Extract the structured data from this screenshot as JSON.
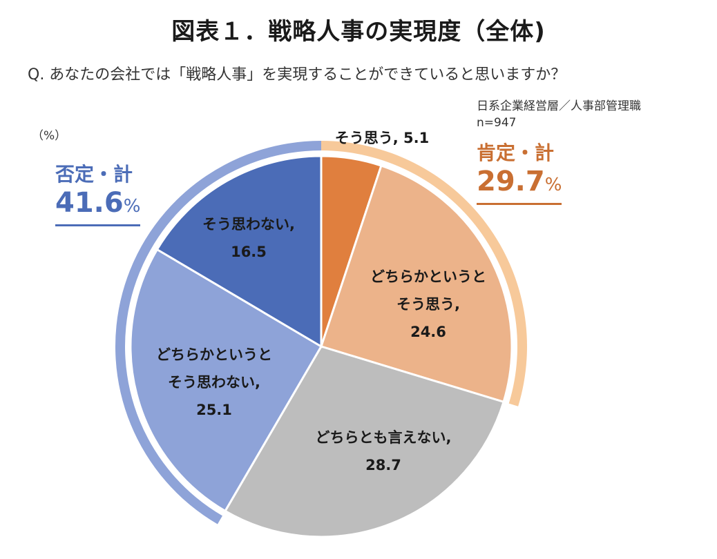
{
  "title": "図表１．戦略人事の実現度（全体)",
  "question": "Q. あなたの会社では「戦略人事」を実現することができていると思いますか？",
  "sample": {
    "group": "日系企業経営層／人事部管理職",
    "n": "n=947"
  },
  "unit": "（%）",
  "positive_total": {
    "label": "肯定・計",
    "value": "29.7",
    "unit": "%",
    "color": "#f7c99a"
  },
  "negative_total": {
    "label": "否定・計",
    "value": "41.6",
    "unit": "%",
    "color": "#8ea3d8"
  },
  "chart_data": {
    "type": "pie",
    "start": "12 o'clock",
    "direction": "clockwise",
    "slices": [
      {
        "label_lines": [
          "そう思う, 5.1"
        ],
        "value": 5.1,
        "color": "#e07f3e"
      },
      {
        "label_lines": [
          "どちらかというと",
          "そう思う,",
          "24.6"
        ],
        "value": 24.6,
        "color": "#ecb38a"
      },
      {
        "label_lines": [
          "どちらとも言えない,",
          "28.7"
        ],
        "value": 28.7,
        "color": "#bdbdbd"
      },
      {
        "label_lines": [
          "どちらかというと",
          "そう思わない,",
          "25.1"
        ],
        "value": 25.1,
        "color": "#8ea3d8"
      },
      {
        "label_lines": [
          "そう思わない,",
          "16.5"
        ],
        "value": 16.5,
        "color": "#4b6cb7"
      }
    ]
  }
}
